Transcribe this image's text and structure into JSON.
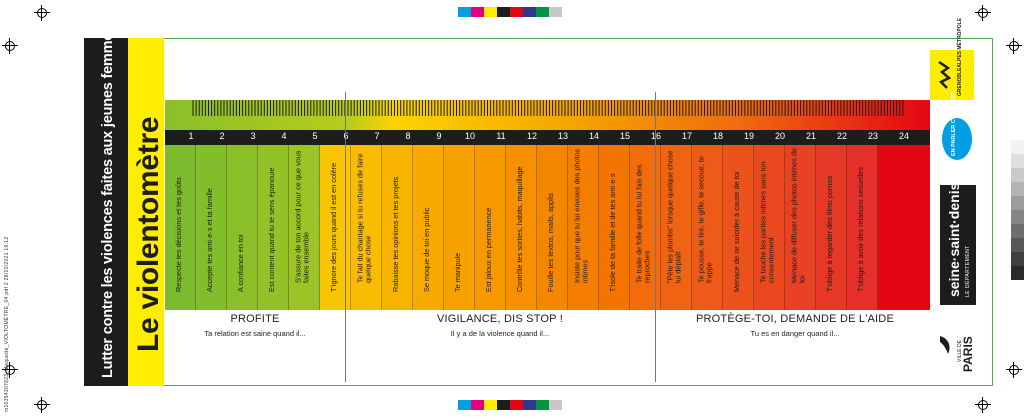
{
  "print_file": "m16354307823_Maquette_VIOLTOMÈTRE_04.pdf   2   28/10/2021   16:12",
  "heading": {
    "subtitle": "Lutter contre les violences faites aux jeunes femmes",
    "title": "Le violentomètre"
  },
  "scale_numbers": [
    "1",
    "2",
    "3",
    "4",
    "5",
    "6",
    "7",
    "8",
    "9",
    "10",
    "11",
    "12",
    "13",
    "14",
    "15",
    "16",
    "17",
    "18",
    "19",
    "20",
    "21",
    "22",
    "23",
    "24"
  ],
  "items": [
    {
      "text": "Respecte tes décisions et tes goûts",
      "color": "#7dbb2e"
    },
    {
      "text": "Accepte tes ami·e·s et ta famille",
      "color": "#82bd2c"
    },
    {
      "text": "A confiance en toi",
      "color": "#8abf2a"
    },
    {
      "text": "Est content quand tu te sens épanouie",
      "color": "#93c228"
    },
    {
      "text": "S'assure de ton accord pour ce que vous faites ensemble",
      "color": "#9cc426"
    },
    {
      "text": "T'ignore des jours quand il est en colère",
      "color": "#f9c500"
    },
    {
      "text": "Te fait du chantage si tu refuses de faire quelque chose",
      "color": "#f9bc00"
    },
    {
      "text": "Rabaisse tes opinions et tes projets",
      "color": "#f8b300"
    },
    {
      "text": "Se moque de toi en public",
      "color": "#f8aa00"
    },
    {
      "text": "Te manipule",
      "color": "#f7a200"
    },
    {
      "text": "Est jaloux en permanence",
      "color": "#f69900"
    },
    {
      "text": "Contrôle tes sorties, habits, maquillage",
      "color": "#f69000"
    },
    {
      "text": "Fouille tes textos, mails, applis",
      "color": "#f58700"
    },
    {
      "text": "Insiste pour que tu lui envoies des photos intimes",
      "color": "#f47e00"
    },
    {
      "text": "T'isole de ta famille et de tes ami·e·s",
      "color": "#f37500"
    },
    {
      "text": "Te traite de folle quand tu lui fais des reproches",
      "color": "#f26c0b"
    },
    {
      "text": "\"Pète les plombs\" lorsque quelque chose lui déplaît",
      "color": "#f06312"
    },
    {
      "text": "Te pousse, te tire, te gifle, te secoue, te frappe",
      "color": "#ee5a18"
    },
    {
      "text": "Menace de se suicider à cause de toi",
      "color": "#ec521c"
    },
    {
      "text": "Te touche les parties intimes sans ton consentement",
      "color": "#ea4920"
    },
    {
      "text": "Menace de diffuser des photos intimes de toi",
      "color": "#e84123"
    },
    {
      "text": "T'oblige à regarder des films pornos",
      "color": "#e63826"
    },
    {
      "text": "T'oblige à avoir des relations sexuelles",
      "color": "#e43029"
    }
  ],
  "sections": [
    {
      "title": "PROFITE",
      "subtitle": "Ta relation est saine quand il..."
    },
    {
      "title": "VIGILANCE, DIS STOP !",
      "subtitle": "Il y a de la violence quand il..."
    },
    {
      "title": "PROTÈGE-TOI, DEMANDE DE L'AIDE",
      "subtitle": "Tu es en danger quand il..."
    }
  ],
  "logos": {
    "metropole": "GRENOBLEALPES MÉTROPOLE",
    "parle": "EN PARLER C'EST AGIR",
    "ssd_main": "seine·saint·denis",
    "ssd_sub": "LE DÉPARTEMENT",
    "paris_small": "VILLE DE",
    "paris_main": "PARIS"
  },
  "colors": {
    "green": "#7dbb2e",
    "yellow": "#ffed00",
    "orange": "#f39200",
    "red": "#e30613",
    "black": "#1d1d1b"
  }
}
